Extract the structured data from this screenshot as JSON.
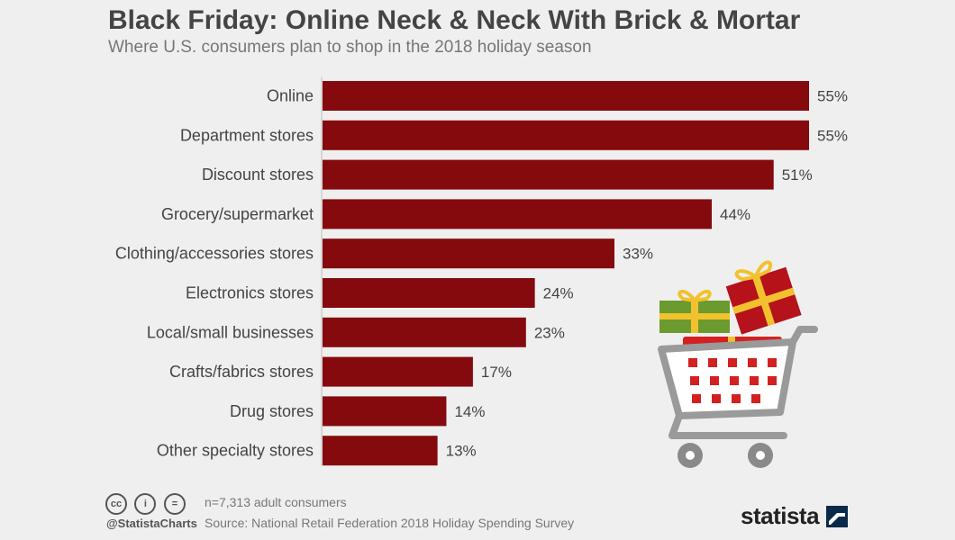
{
  "chart_data": {
    "type": "bar",
    "orientation": "horizontal",
    "title": "Black Friday: Online Neck & Neck With Brick & Mortar",
    "subtitle": "Where U.S. consumers plan to shop in the 2018 holiday season",
    "categories": [
      "Online",
      "Department stores",
      "Discount stores",
      "Grocery/supermarket",
      "Clothing/accessories stores",
      "Electronics stores",
      "Local/small businesses",
      "Crafts/fabrics stores",
      "Drug stores",
      "Other specialty stores"
    ],
    "values": [
      55,
      55,
      51,
      44,
      33,
      24,
      23,
      17,
      14,
      13
    ],
    "value_labels": [
      "55%",
      "55%",
      "51%",
      "44%",
      "33%",
      "24%",
      "23%",
      "17%",
      "14%",
      "13%"
    ],
    "unit": "%",
    "xlim": [
      0,
      55
    ],
    "grid": false,
    "bar_color": "#850a0e"
  },
  "footer": {
    "cc_icons": [
      "cc",
      "i",
      "="
    ],
    "handle": "@StatistaCharts",
    "note": "n=7,313 adult consumers",
    "source": "Source: National Retail Federation 2018 Holiday Spending Survey",
    "brand": "statista"
  },
  "decor": {
    "illustration": "shopping-cart-with-gifts-icon"
  }
}
